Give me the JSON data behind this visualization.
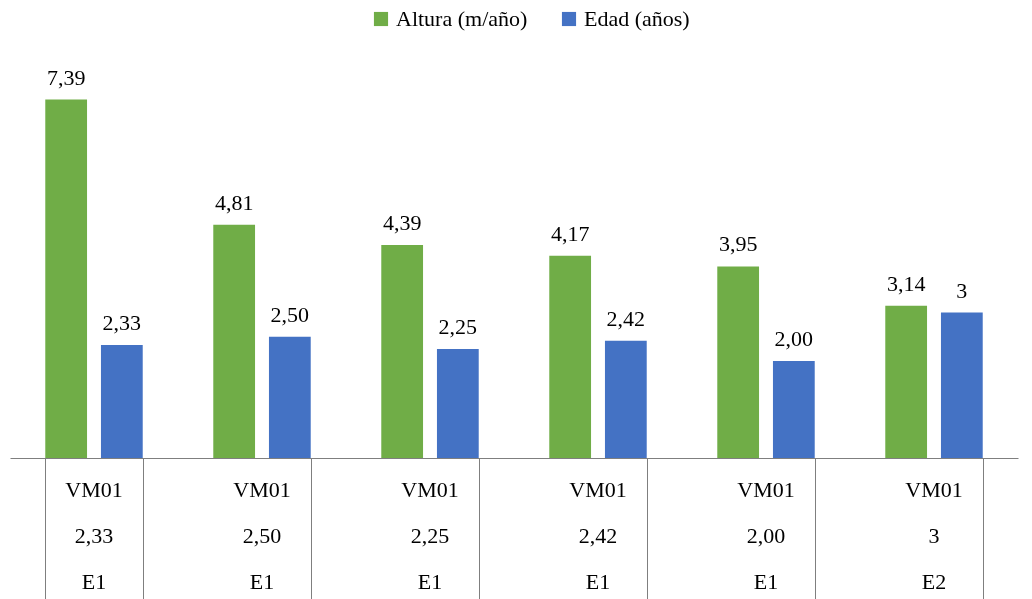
{
  "chart_data": {
    "type": "bar",
    "categories": [
      "VM01\n2,33\nE1",
      "VM01\n2,50\nE1",
      "VM01\n2,25\nE1",
      "VM01\n2,42\nE1",
      "VM01\n2,00\nE1",
      "VM01\n3\nE2"
    ],
    "series": [
      {
        "name": "Altura (m/año)",
        "color": "#70ad47",
        "values": [
          7.39,
          4.81,
          4.39,
          4.17,
          3.95,
          3.14
        ],
        "value_labels": [
          "7,39",
          "4,81",
          "4,39",
          "4,17",
          "3,95",
          "3,14"
        ]
      },
      {
        "name": "Edad (años)",
        "color": "#4472c4",
        "values": [
          2.33,
          2.5,
          2.25,
          2.42,
          2.0,
          3
        ],
        "value_labels": [
          "2,33",
          "2,50",
          "2,25",
          "2,42",
          "2,00",
          "3"
        ]
      }
    ],
    "legend": "top",
    "grid": false
  }
}
